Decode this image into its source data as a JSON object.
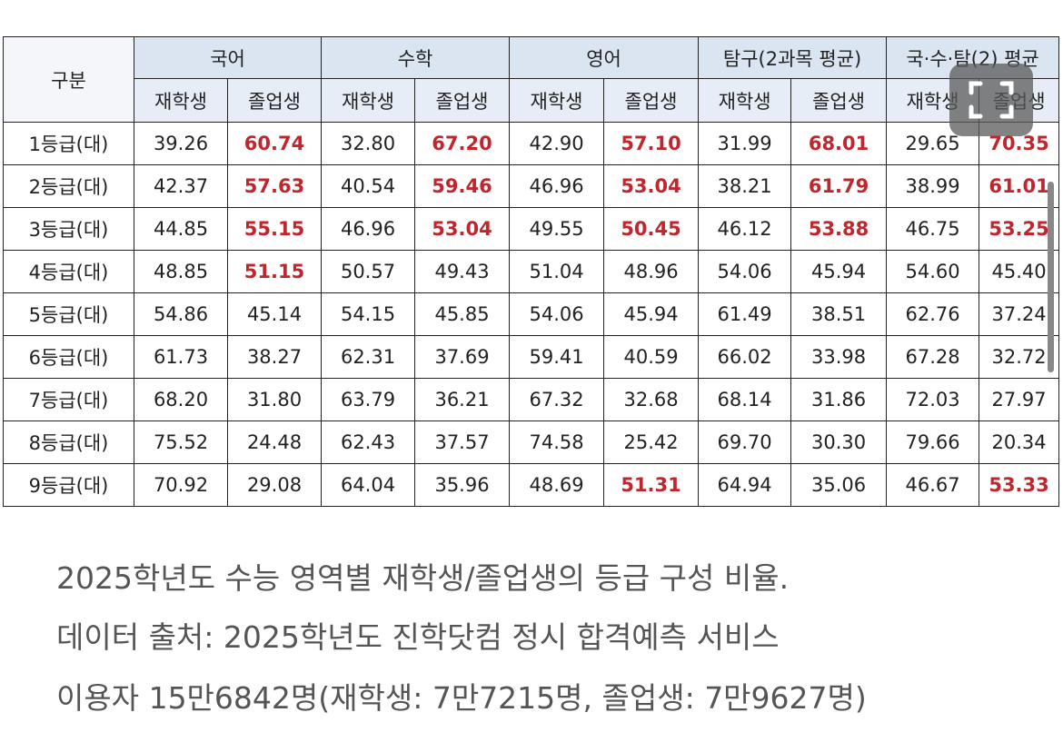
{
  "table": {
    "corner": "구분",
    "groups": [
      "국어",
      "수학",
      "영어",
      "탐구(2과목 평균)",
      "국·수·탐(2) 평균"
    ],
    "subheaders": [
      "재학생",
      "졸업생",
      "재학생",
      "졸업생",
      "재학생",
      "졸업생",
      "재학생",
      "졸업생",
      "재학생",
      "졸업생"
    ],
    "rows": [
      {
        "label": "1등급(대)",
        "values": [
          "39.26",
          "60.74",
          "32.80",
          "67.20",
          "42.90",
          "57.10",
          "31.99",
          "68.01",
          "29.65",
          "70.35"
        ]
      },
      {
        "label": "2등급(대)",
        "values": [
          "42.37",
          "57.63",
          "40.54",
          "59.46",
          "46.96",
          "53.04",
          "38.21",
          "61.79",
          "38.99",
          "61.01"
        ]
      },
      {
        "label": "3등급(대)",
        "values": [
          "44.85",
          "55.15",
          "46.96",
          "53.04",
          "49.55",
          "50.45",
          "46.12",
          "53.88",
          "46.75",
          "53.25"
        ]
      },
      {
        "label": "4등급(대)",
        "values": [
          "48.85",
          "51.15",
          "50.57",
          "49.43",
          "51.04",
          "48.96",
          "54.06",
          "45.94",
          "54.60",
          "45.40"
        ]
      },
      {
        "label": "5등급(대)",
        "values": [
          "54.86",
          "45.14",
          "54.15",
          "45.85",
          "54.06",
          "45.94",
          "61.49",
          "38.51",
          "62.76",
          "37.24"
        ]
      },
      {
        "label": "6등급(대)",
        "values": [
          "61.73",
          "38.27",
          "62.31",
          "37.69",
          "59.41",
          "40.59",
          "66.02",
          "33.98",
          "67.28",
          "32.72"
        ]
      },
      {
        "label": "7등급(대)",
        "values": [
          "68.20",
          "31.80",
          "63.79",
          "36.21",
          "67.32",
          "32.68",
          "68.14",
          "31.86",
          "72.03",
          "27.97"
        ]
      },
      {
        "label": "8등급(대)",
        "values": [
          "75.52",
          "24.48",
          "62.43",
          "37.57",
          "74.58",
          "25.42",
          "69.70",
          "30.30",
          "79.66",
          "20.34"
        ]
      },
      {
        "label": "9등급(대)",
        "values": [
          "70.92",
          "29.08",
          "64.04",
          "35.96",
          "48.69",
          "51.31",
          "64.94",
          "35.06",
          "46.67",
          "53.33"
        ]
      }
    ]
  },
  "caption": [
    "2025학년도 수능 영역별 재학생/졸업생의 등급 구성 비율.",
    "데이터 출처: 2025학년도 진학닷컴 정시 합격예측 서비스",
    "이용자 15만6842명(재학생: 7만7215명, 졸업생: 7만9627명)"
  ]
}
